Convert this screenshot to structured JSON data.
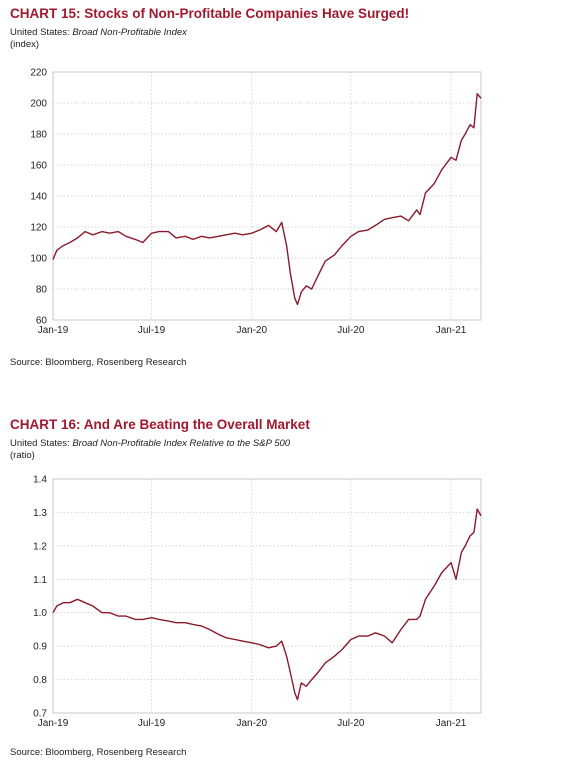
{
  "chart15": {
    "title": "CHART 15: Stocks of Non-Profitable Companies Have Surged!",
    "subtitle_prefix": "United States: ",
    "subtitle_series": "Broad Non-Profitable Index",
    "unit": "(index)",
    "source": "Source: Bloomberg, Rosenberg Research"
  },
  "chart16": {
    "title": "CHART 16: And Are Beating the Overall Market",
    "subtitle_prefix": "United States: ",
    "subtitle_series": "Broad Non-Profitable Index Relative to the S&P 500",
    "unit": "(ratio)",
    "source": "Source: Bloomberg, Rosenberg Research"
  },
  "colors": {
    "accent": "#a0192e",
    "line": "#8b1a2b",
    "grid": "#c8c8c8"
  },
  "chart_data": [
    {
      "type": "line",
      "title": "CHART 15: Stocks of Non-Profitable Companies Have Surged!",
      "ylabel": "(index)",
      "xlim": [
        "2019-01-01",
        "2021-02-25"
      ],
      "ylim": [
        60,
        220
      ],
      "yticks": [
        60,
        80,
        100,
        120,
        140,
        160,
        180,
        200,
        220
      ],
      "xticks": [
        {
          "date": "2019-01-01",
          "label": "Jan-19"
        },
        {
          "date": "2019-07-01",
          "label": "Jul-19"
        },
        {
          "date": "2020-01-01",
          "label": "Jan-20"
        },
        {
          "date": "2020-07-01",
          "label": "Jul-20"
        },
        {
          "date": "2021-01-01",
          "label": "Jan-21"
        }
      ],
      "grid": true,
      "series": [
        {
          "x": [
            "2019-01-01",
            "2019-01-08",
            "2019-01-20",
            "2019-02-01",
            "2019-02-15",
            "2019-03-01",
            "2019-03-15",
            "2019-04-01",
            "2019-04-15",
            "2019-05-01",
            "2019-05-15",
            "2019-06-01",
            "2019-06-15",
            "2019-07-01",
            "2019-07-15",
            "2019-08-01",
            "2019-08-15",
            "2019-09-01",
            "2019-09-15",
            "2019-10-01",
            "2019-10-15",
            "2019-11-01",
            "2019-11-15",
            "2019-12-01",
            "2019-12-15",
            "2020-01-01",
            "2020-01-15",
            "2020-02-01",
            "2020-02-15",
            "2020-02-25",
            "2020-03-05",
            "2020-03-12",
            "2020-03-20",
            "2020-03-25",
            "2020-04-01",
            "2020-04-10",
            "2020-04-20",
            "2020-05-01",
            "2020-05-15",
            "2020-06-01",
            "2020-06-15",
            "2020-07-01",
            "2020-07-15",
            "2020-08-01",
            "2020-08-15",
            "2020-09-01",
            "2020-09-15",
            "2020-10-01",
            "2020-10-15",
            "2020-10-30",
            "2020-11-05",
            "2020-11-15",
            "2020-12-01",
            "2020-12-15",
            "2021-01-01",
            "2021-01-10",
            "2021-01-20",
            "2021-01-27",
            "2021-02-05",
            "2021-02-12",
            "2021-02-18",
            "2021-02-25"
          ],
          "values": [
            99,
            105,
            108,
            110,
            113,
            117,
            115,
            117,
            116,
            117,
            114,
            112,
            110,
            116,
            117,
            117,
            113,
            114,
            112,
            114,
            113,
            114,
            115,
            116,
            115,
            116,
            118,
            121,
            117,
            123,
            108,
            90,
            74,
            70,
            78,
            82,
            80,
            88,
            98,
            102,
            108,
            114,
            117,
            118,
            121,
            125,
            126,
            127,
            124,
            131,
            128,
            142,
            148,
            157,
            165,
            163,
            176,
            180,
            186,
            184,
            206,
            203
          ]
        }
      ]
    },
    {
      "type": "line",
      "title": "CHART 16: And Are Beating the Overall Market",
      "ylabel": "(ratio)",
      "xlim": [
        "2019-01-01",
        "2021-02-25"
      ],
      "ylim": [
        0.7,
        1.4
      ],
      "yticks": [
        0.7,
        0.8,
        0.9,
        1.0,
        1.1,
        1.2,
        1.3,
        1.4
      ],
      "xticks": [
        {
          "date": "2019-01-01",
          "label": "Jan-19"
        },
        {
          "date": "2019-07-01",
          "label": "Jul-19"
        },
        {
          "date": "2020-01-01",
          "label": "Jan-20"
        },
        {
          "date": "2020-07-01",
          "label": "Jul-20"
        },
        {
          "date": "2021-01-01",
          "label": "Jan-21"
        }
      ],
      "grid": true,
      "series": [
        {
          "x": [
            "2019-01-01",
            "2019-01-08",
            "2019-01-20",
            "2019-02-01",
            "2019-02-15",
            "2019-03-01",
            "2019-03-15",
            "2019-04-01",
            "2019-04-15",
            "2019-05-01",
            "2019-05-15",
            "2019-06-01",
            "2019-06-15",
            "2019-07-01",
            "2019-07-15",
            "2019-08-01",
            "2019-08-15",
            "2019-09-01",
            "2019-09-15",
            "2019-10-01",
            "2019-10-15",
            "2019-11-01",
            "2019-11-15",
            "2019-12-01",
            "2019-12-15",
            "2020-01-01",
            "2020-01-15",
            "2020-02-01",
            "2020-02-15",
            "2020-02-25",
            "2020-03-05",
            "2020-03-12",
            "2020-03-20",
            "2020-03-25",
            "2020-04-01",
            "2020-04-10",
            "2020-04-20",
            "2020-05-01",
            "2020-05-15",
            "2020-06-01",
            "2020-06-15",
            "2020-07-01",
            "2020-07-15",
            "2020-08-01",
            "2020-08-15",
            "2020-09-01",
            "2020-09-15",
            "2020-10-01",
            "2020-10-15",
            "2020-10-30",
            "2020-11-05",
            "2020-11-15",
            "2020-12-01",
            "2020-12-15",
            "2021-01-01",
            "2021-01-10",
            "2021-01-20",
            "2021-01-27",
            "2021-02-05",
            "2021-02-12",
            "2021-02-18",
            "2021-02-25"
          ],
          "values": [
            1.0,
            1.02,
            1.03,
            1.03,
            1.04,
            1.03,
            1.02,
            1.0,
            1.0,
            0.99,
            0.99,
            0.98,
            0.98,
            0.985,
            0.98,
            0.975,
            0.97,
            0.97,
            0.965,
            0.96,
            0.95,
            0.935,
            0.925,
            0.92,
            0.915,
            0.91,
            0.905,
            0.895,
            0.9,
            0.915,
            0.87,
            0.82,
            0.76,
            0.74,
            0.79,
            0.78,
            0.8,
            0.82,
            0.85,
            0.87,
            0.89,
            0.92,
            0.93,
            0.93,
            0.94,
            0.93,
            0.91,
            0.95,
            0.98,
            0.98,
            0.99,
            1.04,
            1.08,
            1.12,
            1.15,
            1.1,
            1.18,
            1.2,
            1.23,
            1.24,
            1.31,
            1.29
          ]
        }
      ]
    }
  ]
}
